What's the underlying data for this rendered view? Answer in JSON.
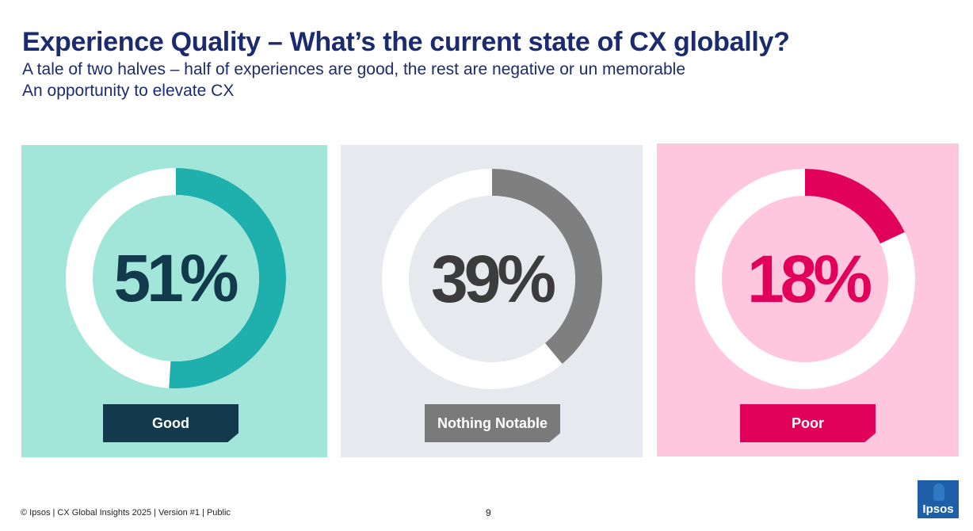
{
  "header": {
    "title": "Experience Quality – What’s the current state of CX globally?",
    "subtitle_line1": "A tale of two halves – half of experiences are good, the rest are negative or un memorable",
    "subtitle_line2": "An opportunity to elevate CX"
  },
  "chart_data": {
    "type": "pie",
    "title": "Experience Quality – What’s the current state of CX globally?",
    "categories": [
      "Good",
      "Nothing Notable",
      "Poor"
    ],
    "values": [
      51,
      39,
      18
    ],
    "value_labels": [
      "51%",
      "39%",
      "18%"
    ],
    "unit": "%",
    "colors": {
      "good": {
        "panel": "#a1e6d9",
        "arc": "#1fb0ad",
        "inner": "#a1e6d9",
        "text": "#123a4c",
        "tag": "#123a4c"
      },
      "nothing_notable": {
        "panel": "#e6e9ee",
        "arc": "#7f7f7f",
        "inner": "#e6e9ee",
        "text": "#3c3c3c",
        "tag": "#7a7a7a"
      },
      "poor": {
        "panel": "#fec7dd",
        "arc": "#e1005a",
        "inner": "#fec7dd",
        "text": "#e1005a",
        "tag": "#e1005a"
      }
    }
  },
  "footer": {
    "text": "© Ipsos | CX Global Insights 2025 | Version #1 | Public",
    "page_number": "9",
    "logo_text": "Ipsos"
  }
}
